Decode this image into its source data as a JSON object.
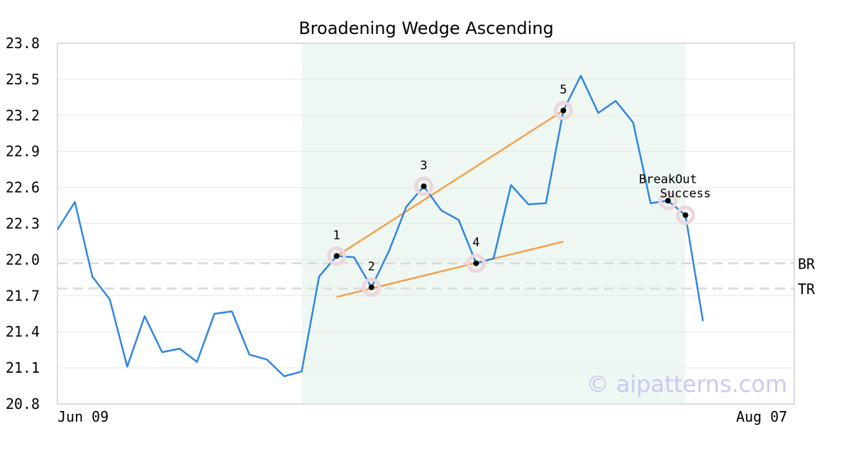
{
  "chart_data": {
    "type": "line",
    "title": "Broadening Wedge Ascending",
    "xlabel": "",
    "ylabel": "",
    "ylim": [
      20.8,
      23.8
    ],
    "yticks": [
      "20.8",
      "21.1",
      "21.4",
      "21.7",
      "22.0",
      "22.3",
      "22.6",
      "22.9",
      "23.2",
      "23.5",
      "23.8"
    ],
    "x_tick_labels": [
      {
        "index": 0,
        "label": "Jun 09"
      },
      {
        "index": 42,
        "label": "Aug 07"
      }
    ],
    "grid": true,
    "colors": {
      "line": "#2f86e0",
      "trend": "#f5a04a",
      "pattern_region": "#eef7f2",
      "marker_halo": "#ecd6dc",
      "reference": "#dddddd"
    },
    "series": [
      {
        "values": [
          22.25,
          22.48,
          21.86,
          21.67,
          21.11,
          21.53,
          21.23,
          21.26,
          21.15,
          21.55,
          21.57,
          21.21,
          21.17,
          21.03,
          21.07,
          21.86,
          22.03,
          22.02,
          21.77,
          22.07,
          22.44,
          22.61,
          22.41,
          22.33,
          21.97,
          22.01,
          22.62,
          22.46,
          22.47,
          23.24,
          23.53,
          23.22,
          23.32,
          23.14,
          22.47,
          22.49,
          22.37,
          21.49
        ]
      }
    ],
    "pattern_region": {
      "start_index": 14,
      "end_index": 36
    },
    "pattern_points": [
      {
        "label": "1",
        "index": 16,
        "value": 22.03
      },
      {
        "label": "2",
        "index": 18,
        "value": 21.77
      },
      {
        "label": "3",
        "index": 21,
        "value": 22.61
      },
      {
        "label": "4",
        "index": 24,
        "value": 21.97
      },
      {
        "label": "5",
        "index": 29,
        "value": 23.24
      }
    ],
    "trend_lines": [
      {
        "from_index": 16,
        "from_value": 22.03,
        "to_index": 29,
        "to_value": 23.24
      },
      {
        "from_index": 16,
        "from_value": 21.69,
        "to_index": 29,
        "to_value": 22.15
      }
    ],
    "reference_lines": [
      {
        "label": "BR",
        "value": 21.97
      },
      {
        "label": "TR",
        "value": 21.76
      }
    ],
    "annotations": [
      {
        "label": "BreakOut",
        "index": 35,
        "value": 22.49
      },
      {
        "label": "Success",
        "index": 36,
        "value": 22.37
      }
    ],
    "watermark": "© aipatterns.com"
  }
}
